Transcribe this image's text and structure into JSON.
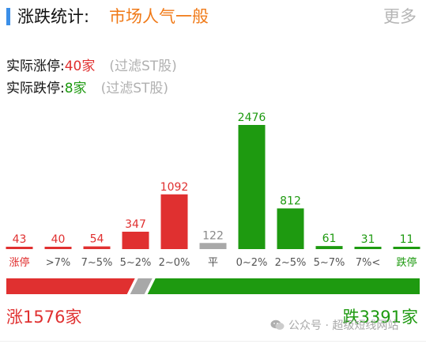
{
  "header": {
    "title": "涨跌统计:",
    "mood": "市场人气一般",
    "more": "更多"
  },
  "stats": {
    "limit_up_label": "实际涨停:",
    "limit_up_value": "40家",
    "limit_up_note": "(过滤ST股)",
    "limit_down_label": "实际跌停:",
    "limit_down_value": "8家",
    "limit_down_note": "(过滤ST股)"
  },
  "colors": {
    "up": "#e03030",
    "flat": "#a8a8a8",
    "down": "#1e9a10",
    "accent": "#3b8fe8",
    "mood": "#f07a18"
  },
  "chart_data": {
    "type": "bar",
    "categories": [
      "涨停",
      ">7%",
      "7~5%",
      "5~2%",
      "2~0%",
      "平",
      "0~2%",
      "2~5%",
      "5~7%",
      "7%<",
      "跌停"
    ],
    "values": [
      43,
      40,
      54,
      347,
      1092,
      122,
      2476,
      812,
      61,
      31,
      11
    ],
    "groups": [
      "up",
      "up",
      "up",
      "up",
      "up",
      "flat",
      "down",
      "down",
      "down",
      "down",
      "down"
    ],
    "title": "",
    "xlabel": "",
    "ylabel": ""
  },
  "summary": {
    "up_count": 1576,
    "flat_count": 122,
    "down_count": 3391
  },
  "footer": {
    "up_text": "涨1576家",
    "down_text": "跌3391家"
  },
  "watermark": {
    "icon": "wechat-icon",
    "text": "公众号 · 超级短线网站"
  }
}
